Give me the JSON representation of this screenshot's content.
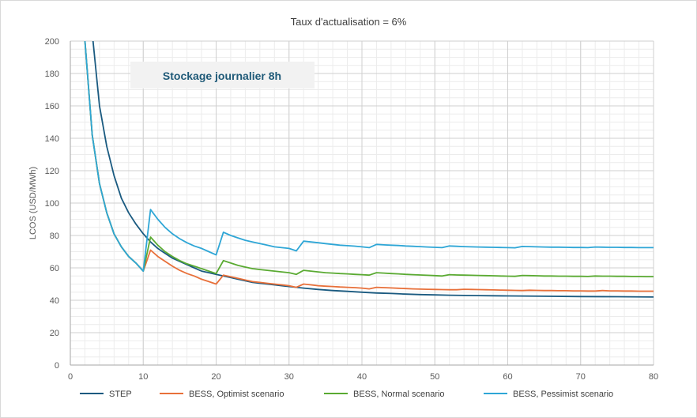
{
  "chart_data": {
    "type": "line",
    "title": "Taux d'actualisation = 6%",
    "xlabel": "",
    "ylabel": "LCOS (USD/MWh)",
    "xlim": [
      0,
      80
    ],
    "ylim": [
      0,
      200
    ],
    "x_ticks": [
      0,
      10,
      20,
      30,
      40,
      50,
      60,
      70,
      80
    ],
    "y_ticks": [
      0,
      20,
      40,
      60,
      80,
      100,
      120,
      140,
      160,
      180,
      200
    ],
    "grid": true,
    "legend_position": "bottom",
    "annotation": "Stockage journalier 8h",
    "series": [
      {
        "name": "STEP",
        "color": "#1a5a80",
        "x": [
          3,
          4,
          5,
          6,
          7,
          8,
          9,
          10,
          11,
          12,
          13,
          14,
          15,
          16,
          17,
          18,
          19,
          20,
          21,
          22,
          23,
          24,
          25,
          26,
          27,
          28,
          29,
          30,
          32,
          34,
          36,
          38,
          40,
          42,
          44,
          46,
          48,
          50,
          52,
          54,
          56,
          58,
          60,
          65,
          70,
          75,
          80
        ],
        "y": [
          205,
          160,
          135,
          117,
          103,
          94,
          87,
          81,
          76,
          72,
          69,
          66,
          64,
          62,
          60,
          58,
          57,
          56,
          55,
          54,
          53,
          52,
          51,
          50.5,
          50,
          49.5,
          49,
          48.5,
          47.5,
          46.7,
          46,
          45.5,
          45,
          44.5,
          44.2,
          43.8,
          43.5,
          43.3,
          43.1,
          43,
          42.9,
          42.8,
          42.7,
          42.5,
          42.3,
          42.2,
          42
        ]
      },
      {
        "name": "BESS, Optimist scenario",
        "color": "#e8703a",
        "x": [
          2,
          3,
          4,
          5,
          6,
          7,
          8,
          9,
          10,
          11,
          12,
          13,
          14,
          15,
          16,
          17,
          18,
          19,
          20,
          21,
          22,
          23,
          24,
          25,
          26,
          27,
          28,
          29,
          30,
          31,
          32,
          33,
          34,
          35,
          36,
          37,
          38,
          39,
          40,
          41,
          42,
          43,
          44,
          45,
          46,
          47,
          48,
          49,
          50,
          51,
          52,
          53,
          54,
          55,
          56,
          57,
          58,
          59,
          60,
          61,
          62,
          63,
          64,
          65,
          66,
          67,
          68,
          69,
          70,
          71,
          72,
          73,
          74,
          75,
          76,
          77,
          78,
          79,
          80
        ],
        "y": [
          200,
          142,
          112,
          94,
          81,
          73,
          67,
          63,
          58,
          71,
          67,
          64,
          61,
          58.5,
          56.5,
          55,
          53,
          51.5,
          50,
          55.5,
          54.5,
          53.5,
          52.5,
          51.5,
          51,
          50.5,
          50,
          49.5,
          49,
          48,
          50,
          49.5,
          49,
          48.7,
          48.5,
          48.2,
          48,
          47.8,
          47.5,
          47,
          48,
          47.8,
          47.6,
          47.4,
          47.2,
          47,
          46.9,
          46.8,
          46.7,
          46.6,
          46.5,
          46.5,
          46.8,
          46.7,
          46.6,
          46.5,
          46.4,
          46.3,
          46.2,
          46.1,
          46,
          46.2,
          46.1,
          46,
          46,
          45.9,
          45.9,
          45.8,
          45.8,
          45.7,
          45.7,
          46,
          45.8,
          45.8,
          45.7,
          45.7,
          45.6,
          45.6,
          45.6
        ]
      },
      {
        "name": "BESS, Normal scenario",
        "color": "#5aaa32",
        "x": [
          2,
          3,
          4,
          5,
          6,
          7,
          8,
          9,
          10,
          11,
          12,
          13,
          14,
          15,
          16,
          17,
          18,
          19,
          20,
          21,
          22,
          23,
          24,
          25,
          26,
          27,
          28,
          29,
          30,
          31,
          32,
          33,
          34,
          35,
          36,
          37,
          38,
          39,
          40,
          41,
          42,
          43,
          44,
          45,
          46,
          47,
          48,
          49,
          50,
          51,
          52,
          53,
          54,
          55,
          56,
          57,
          58,
          59,
          60,
          61,
          62,
          63,
          64,
          65,
          66,
          67,
          68,
          69,
          70,
          71,
          72,
          73,
          74,
          75,
          76,
          77,
          78,
          79,
          80
        ],
        "y": [
          200,
          142,
          112,
          94,
          81,
          73,
          67,
          63,
          58,
          79,
          74,
          70,
          67,
          64.5,
          62.5,
          61,
          59.5,
          58,
          56.5,
          64.5,
          63,
          61.5,
          60.5,
          59.5,
          59,
          58.5,
          58,
          57.5,
          57,
          56,
          58.5,
          58,
          57.5,
          57,
          56.8,
          56.5,
          56.3,
          56,
          55.8,
          55.5,
          57,
          56.8,
          56.5,
          56.3,
          56,
          55.8,
          55.6,
          55.4,
          55.2,
          55,
          55.8,
          55.6,
          55.5,
          55.4,
          55.3,
          55.2,
          55.1,
          55,
          54.9,
          54.8,
          55.3,
          55.2,
          55.1,
          55,
          55,
          54.9,
          54.9,
          54.8,
          54.8,
          54.7,
          55,
          54.9,
          54.9,
          54.8,
          54.8,
          54.7,
          54.7,
          54.6,
          54.6
        ]
      },
      {
        "name": "BESS, Pessimist scenario",
        "color": "#2ea6d6",
        "x": [
          2,
          3,
          4,
          5,
          6,
          7,
          8,
          9,
          10,
          11,
          12,
          13,
          14,
          15,
          16,
          17,
          18,
          19,
          20,
          21,
          22,
          23,
          24,
          25,
          26,
          27,
          28,
          29,
          30,
          31,
          32,
          33,
          34,
          35,
          36,
          37,
          38,
          39,
          40,
          41,
          42,
          43,
          44,
          45,
          46,
          47,
          48,
          49,
          50,
          51,
          52,
          53,
          54,
          55,
          56,
          57,
          58,
          59,
          60,
          61,
          62,
          63,
          64,
          65,
          66,
          67,
          68,
          69,
          70,
          71,
          72,
          73,
          74,
          75,
          76,
          77,
          78,
          79,
          80
        ],
        "y": [
          200,
          142,
          112,
          94,
          81,
          73,
          67,
          63,
          58,
          96,
          90,
          85,
          81,
          78,
          75.5,
          73.5,
          72,
          70,
          68,
          82,
          80,
          78.5,
          77,
          76,
          75,
          74,
          73,
          72.5,
          72,
          70.5,
          76.5,
          76,
          75.5,
          75,
          74.5,
          74,
          73.7,
          73.4,
          73,
          72.5,
          74.5,
          74.2,
          74,
          73.8,
          73.5,
          73.3,
          73.1,
          72.9,
          72.7,
          72.5,
          73.5,
          73.3,
          73.1,
          73,
          72.9,
          72.8,
          72.7,
          72.6,
          72.5,
          72.4,
          73.2,
          73.1,
          73,
          72.9,
          72.8,
          72.8,
          72.7,
          72.6,
          72.6,
          72.5,
          72.9,
          72.8,
          72.7,
          72.7,
          72.6,
          72.6,
          72.5,
          72.5,
          72.5
        ]
      }
    ]
  }
}
